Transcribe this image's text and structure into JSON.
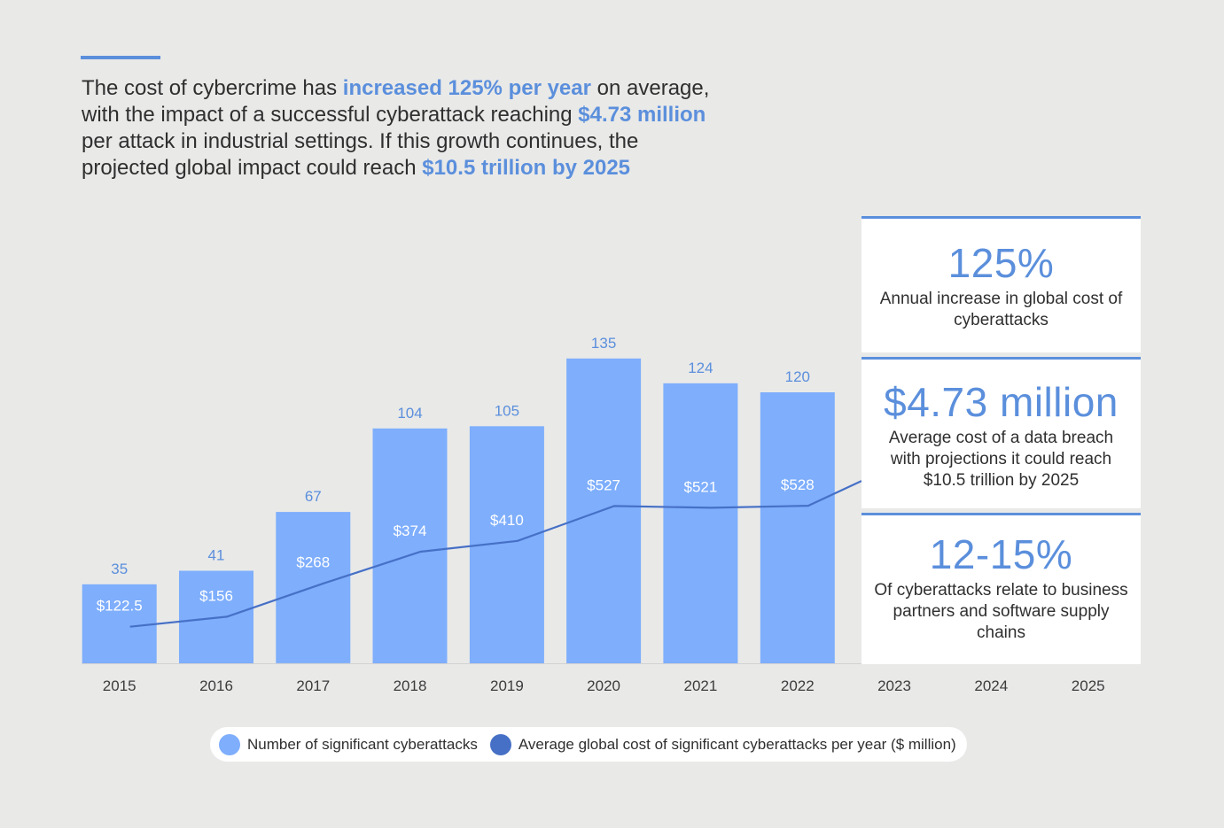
{
  "intro": {
    "segments": [
      {
        "text": "The cost of cybercrime has ",
        "highlight": false
      },
      {
        "text": "increased 125% per year",
        "highlight": true
      },
      {
        "text": " on average, with the impact of a successful cyberattack reaching ",
        "highlight": false
      },
      {
        "text": "$4.73 million",
        "highlight": true
      },
      {
        "text": " per attack in industrial settings. If this growth continues, the projected global impact could reach ",
        "highlight": false
      },
      {
        "text": "$10.5 trillion by 2025",
        "highlight": true
      }
    ]
  },
  "stats": [
    {
      "value": "125%",
      "label": "Annual increase in global cost of cyberattacks"
    },
    {
      "value": "$4.73 million",
      "label": "Average cost of a data breach with projections it could reach $10.5 trillion by 2025"
    },
    {
      "value": "12-15%",
      "label": "Of cyberattacks relate to business partners and software supply chains"
    }
  ],
  "colors": {
    "accent": "#5b8fdc",
    "bar": "#7eaefc",
    "line": "#4670c6",
    "background": "#e9e9e8"
  },
  "chart_data": {
    "type": "bar",
    "categories": [
      "2015",
      "2016",
      "2017",
      "2018",
      "2019",
      "2020",
      "2021",
      "2022",
      "2023",
      "2024",
      "2025"
    ],
    "series": [
      {
        "name": "Number of significant cyberattacks",
        "type": "bar",
        "values": [
          35,
          41,
          67,
          104,
          105,
          135,
          124,
          120,
          null,
          null,
          null
        ],
        "labels": [
          "35",
          "41",
          "67",
          "104",
          "105",
          "135",
          "124",
          "120",
          null,
          null,
          null
        ]
      },
      {
        "name": "Average global cost of significant cyberattacks per year ($ million)",
        "type": "line",
        "values": [
          122.5,
          156,
          268,
          374,
          410,
          527,
          521,
          528,
          null,
          null,
          null
        ],
        "labels": [
          "$122.5",
          "$156",
          "$268",
          "$374",
          "$410",
          "$527",
          "$521",
          "$528",
          null,
          null,
          null
        ]
      }
    ],
    "title": "",
    "xlabel": "",
    "ylabel": "",
    "grid": false,
    "legend": "bottom-center"
  },
  "legend": {
    "items": [
      {
        "label": "Number of significant cyberattacks",
        "color": "#7eaefc"
      },
      {
        "label": "Average global cost of significant cyberattacks per year ($ million)",
        "color": "#4670c6"
      }
    ]
  }
}
